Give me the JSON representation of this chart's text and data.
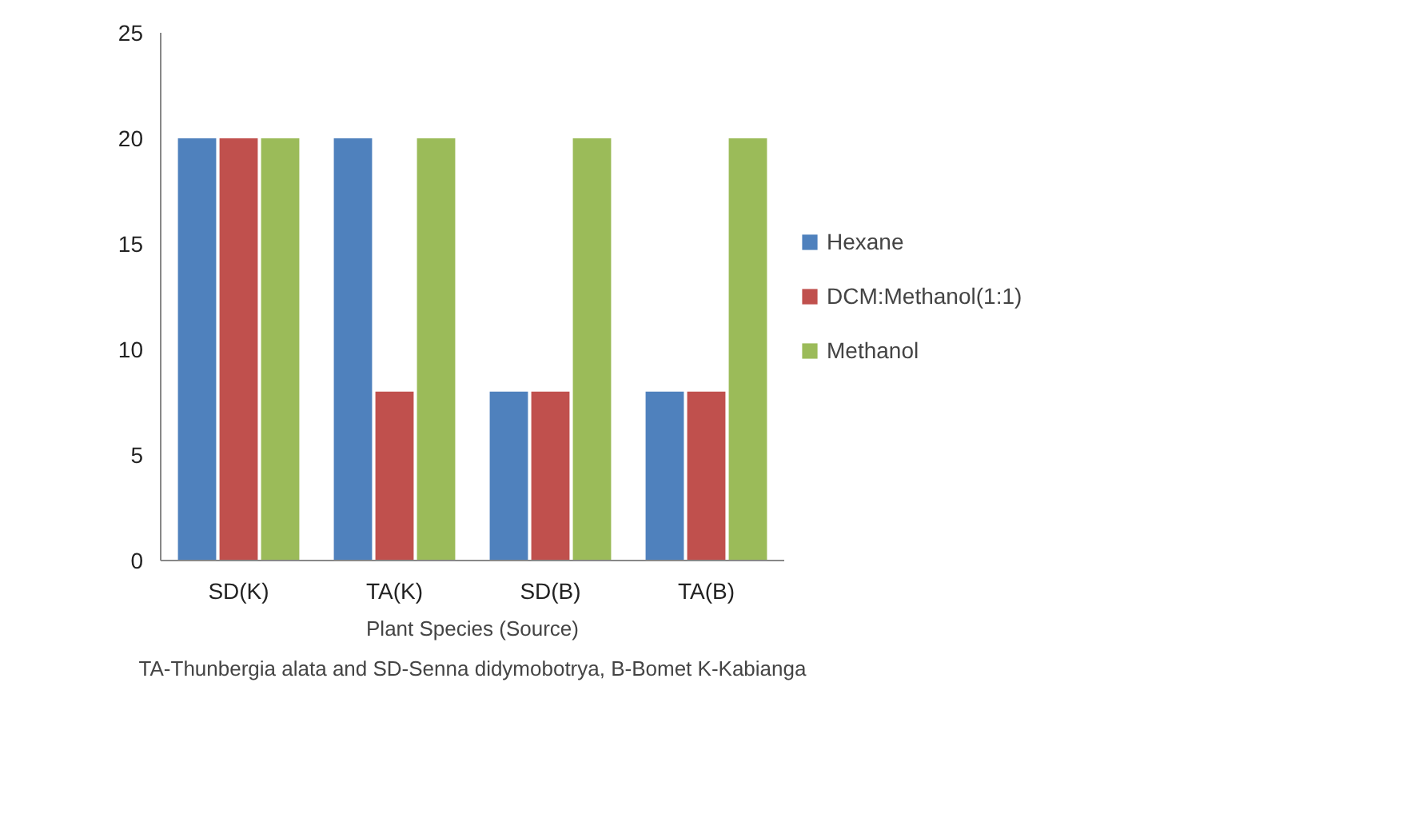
{
  "chart_data": {
    "type": "bar",
    "xlabel": "Plant Species (Source)",
    "categories": [
      "SD(K)",
      "TA(K)",
      "SD(B)",
      "TA(B)"
    ],
    "series": [
      {
        "name": "Hexane",
        "color": "#4f81bd",
        "values": [
          20,
          20,
          8,
          8
        ]
      },
      {
        "name": "DCM:Methanol(1:1)",
        "color": "#c0504d",
        "values": [
          20,
          8,
          8,
          8
        ]
      },
      {
        "name": "Methanol",
        "color": "#9bbb59",
        "values": [
          20,
          20,
          20,
          20
        ]
      }
    ],
    "ylim": [
      0,
      25
    ],
    "yticks": [
      0,
      5,
      10,
      15,
      20,
      25
    ],
    "grid": false,
    "legend": "right",
    "annotations": [
      "TA-Thunbergia alata and SD-Senna didymobotrya, B-Bomet K-Kabianga"
    ]
  }
}
